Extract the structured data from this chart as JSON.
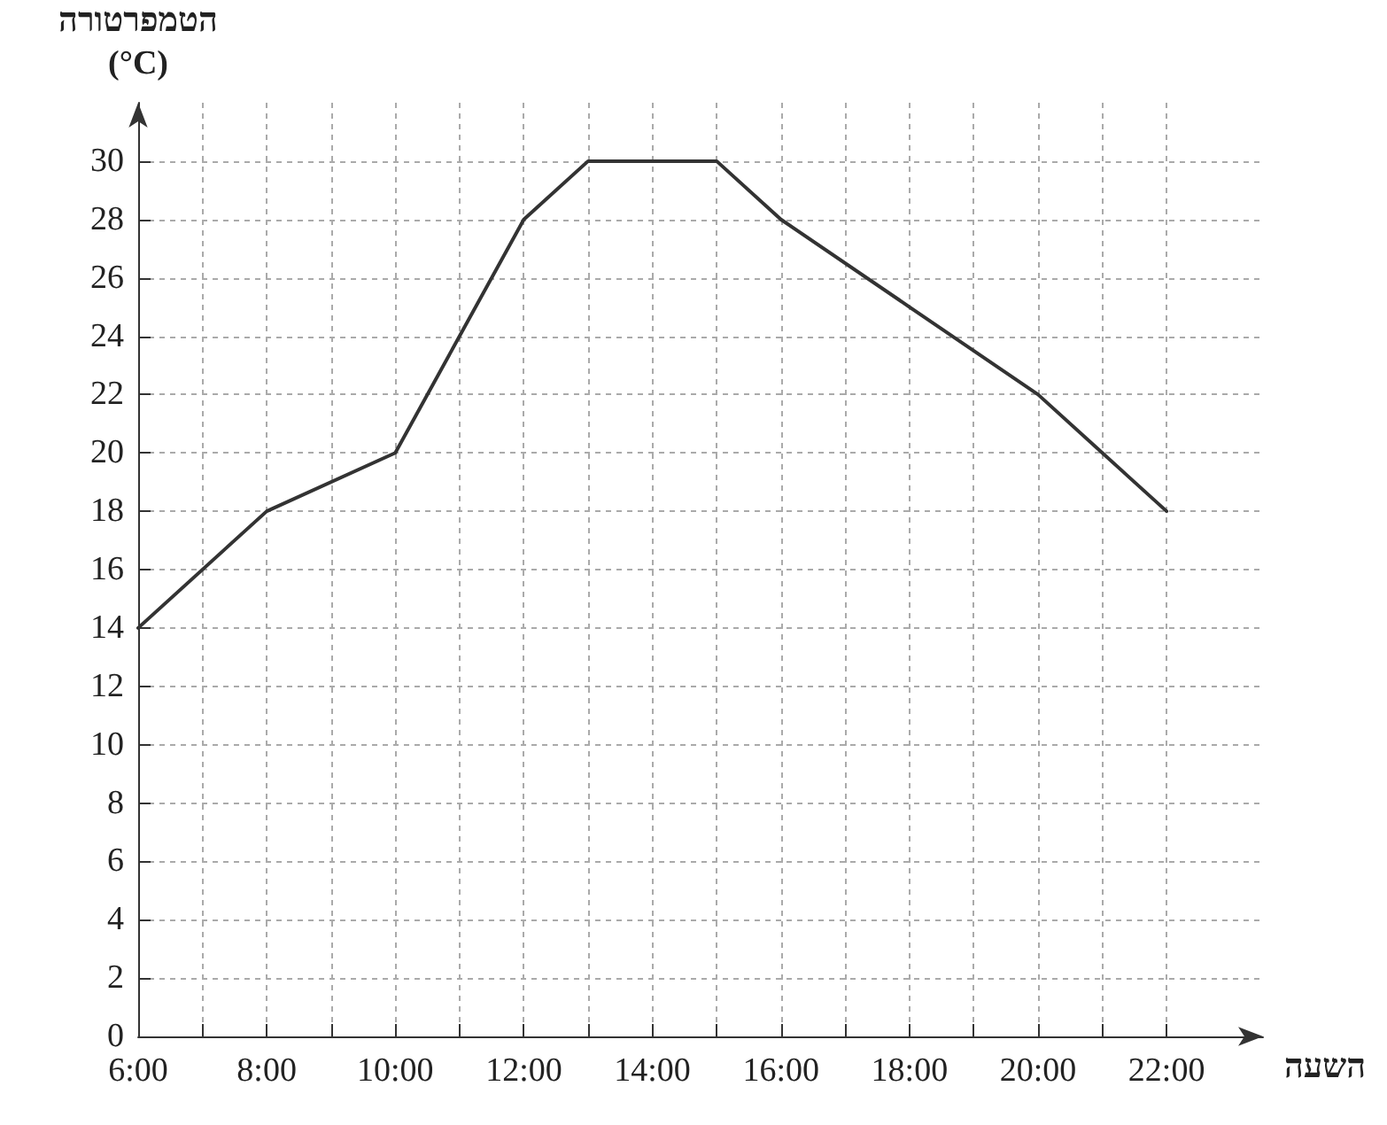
{
  "chart_data": {
    "type": "line",
    "ylabel": "הטמפרטורה\n(°C)",
    "xlabel": "השעה",
    "x": [
      6,
      8,
      10,
      12,
      13,
      15,
      16,
      18,
      20,
      22
    ],
    "series": [
      {
        "color": "#333333",
        "values": [
          14,
          18,
          20,
          28,
          30,
          30,
          28,
          25,
          22,
          18
        ]
      }
    ],
    "xlim": [
      6,
      23.5
    ],
    "xticks": [
      {
        "value": 6,
        "label": "6:00"
      },
      {
        "value": 7,
        "label": null
      },
      {
        "value": 8,
        "label": "8:00"
      },
      {
        "value": 9,
        "label": null
      },
      {
        "value": 10,
        "label": "10:00"
      },
      {
        "value": 11,
        "label": null
      },
      {
        "value": 12,
        "label": "12:00"
      },
      {
        "value": 13,
        "label": null
      },
      {
        "value": 14,
        "label": "14:00"
      },
      {
        "value": 15,
        "label": null
      },
      {
        "value": 16,
        "label": "16:00"
      },
      {
        "value": 17,
        "label": null
      },
      {
        "value": 18,
        "label": "18:00"
      },
      {
        "value": 19,
        "label": null
      },
      {
        "value": 20,
        "label": "20:00"
      },
      {
        "value": 21,
        "label": null
      },
      {
        "value": 22,
        "label": "22:00"
      }
    ],
    "ylim": [
      0,
      32
    ],
    "yticks": [
      0,
      2,
      4,
      6,
      8,
      10,
      12,
      14,
      16,
      18,
      20,
      22,
      24,
      26,
      28,
      30
    ],
    "grid": true,
    "marker": "none",
    "line_style": "solid"
  }
}
